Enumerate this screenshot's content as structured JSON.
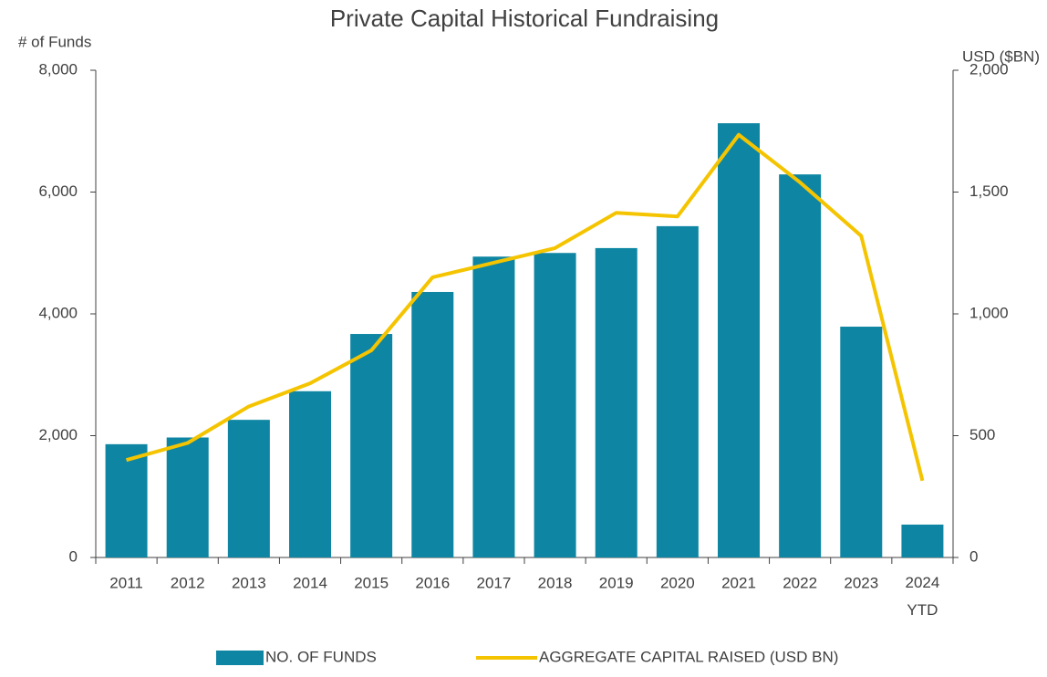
{
  "chart_data": {
    "type": "bar_line",
    "title": "Private Capital Historical Fundraising",
    "y_label": "# of Funds",
    "y2_label": "USD ($BN)",
    "categories": [
      "2011",
      "2012",
      "2013",
      "2014",
      "2015",
      "2016",
      "2017",
      "2018",
      "2019",
      "2020",
      "2021",
      "2022",
      "2023",
      "2024 YTD"
    ],
    "series": [
      {
        "name": "NO. OF FUNDS",
        "type": "bar",
        "color": "#0e86a3",
        "values": [
          1860,
          1970,
          2260,
          2730,
          3670,
          4360,
          4940,
          5000,
          5080,
          5440,
          7130,
          6290,
          3790,
          540
        ]
      },
      {
        "name": "AGGREGATE CAPITAL RAISED (USD BN)",
        "type": "line",
        "axis": "y2",
        "color": "#f5c400",
        "values": [
          400,
          470,
          620,
          715,
          850,
          1150,
          1210,
          1270,
          1415,
          1400,
          1735,
          1540,
          1320,
          315
        ]
      }
    ],
    "ylim": [
      0,
      8000
    ],
    "yticks": [
      0,
      {
        "value": 2000,
        "label": "2,000"
      },
      {
        "value": 4000,
        "label": "4,000"
      },
      {
        "value": 6000,
        "label": "6,000"
      },
      {
        "value": 8000,
        "label": "8,000"
      }
    ],
    "y2lim": [
      0,
      2000
    ],
    "y2ticks": [
      0,
      500,
      {
        "value": 1000,
        "label": "1,000"
      },
      {
        "value": 1500,
        "label": "1,500"
      },
      {
        "value": 2000,
        "label": "2,000"
      }
    ],
    "legend": "bottom"
  }
}
